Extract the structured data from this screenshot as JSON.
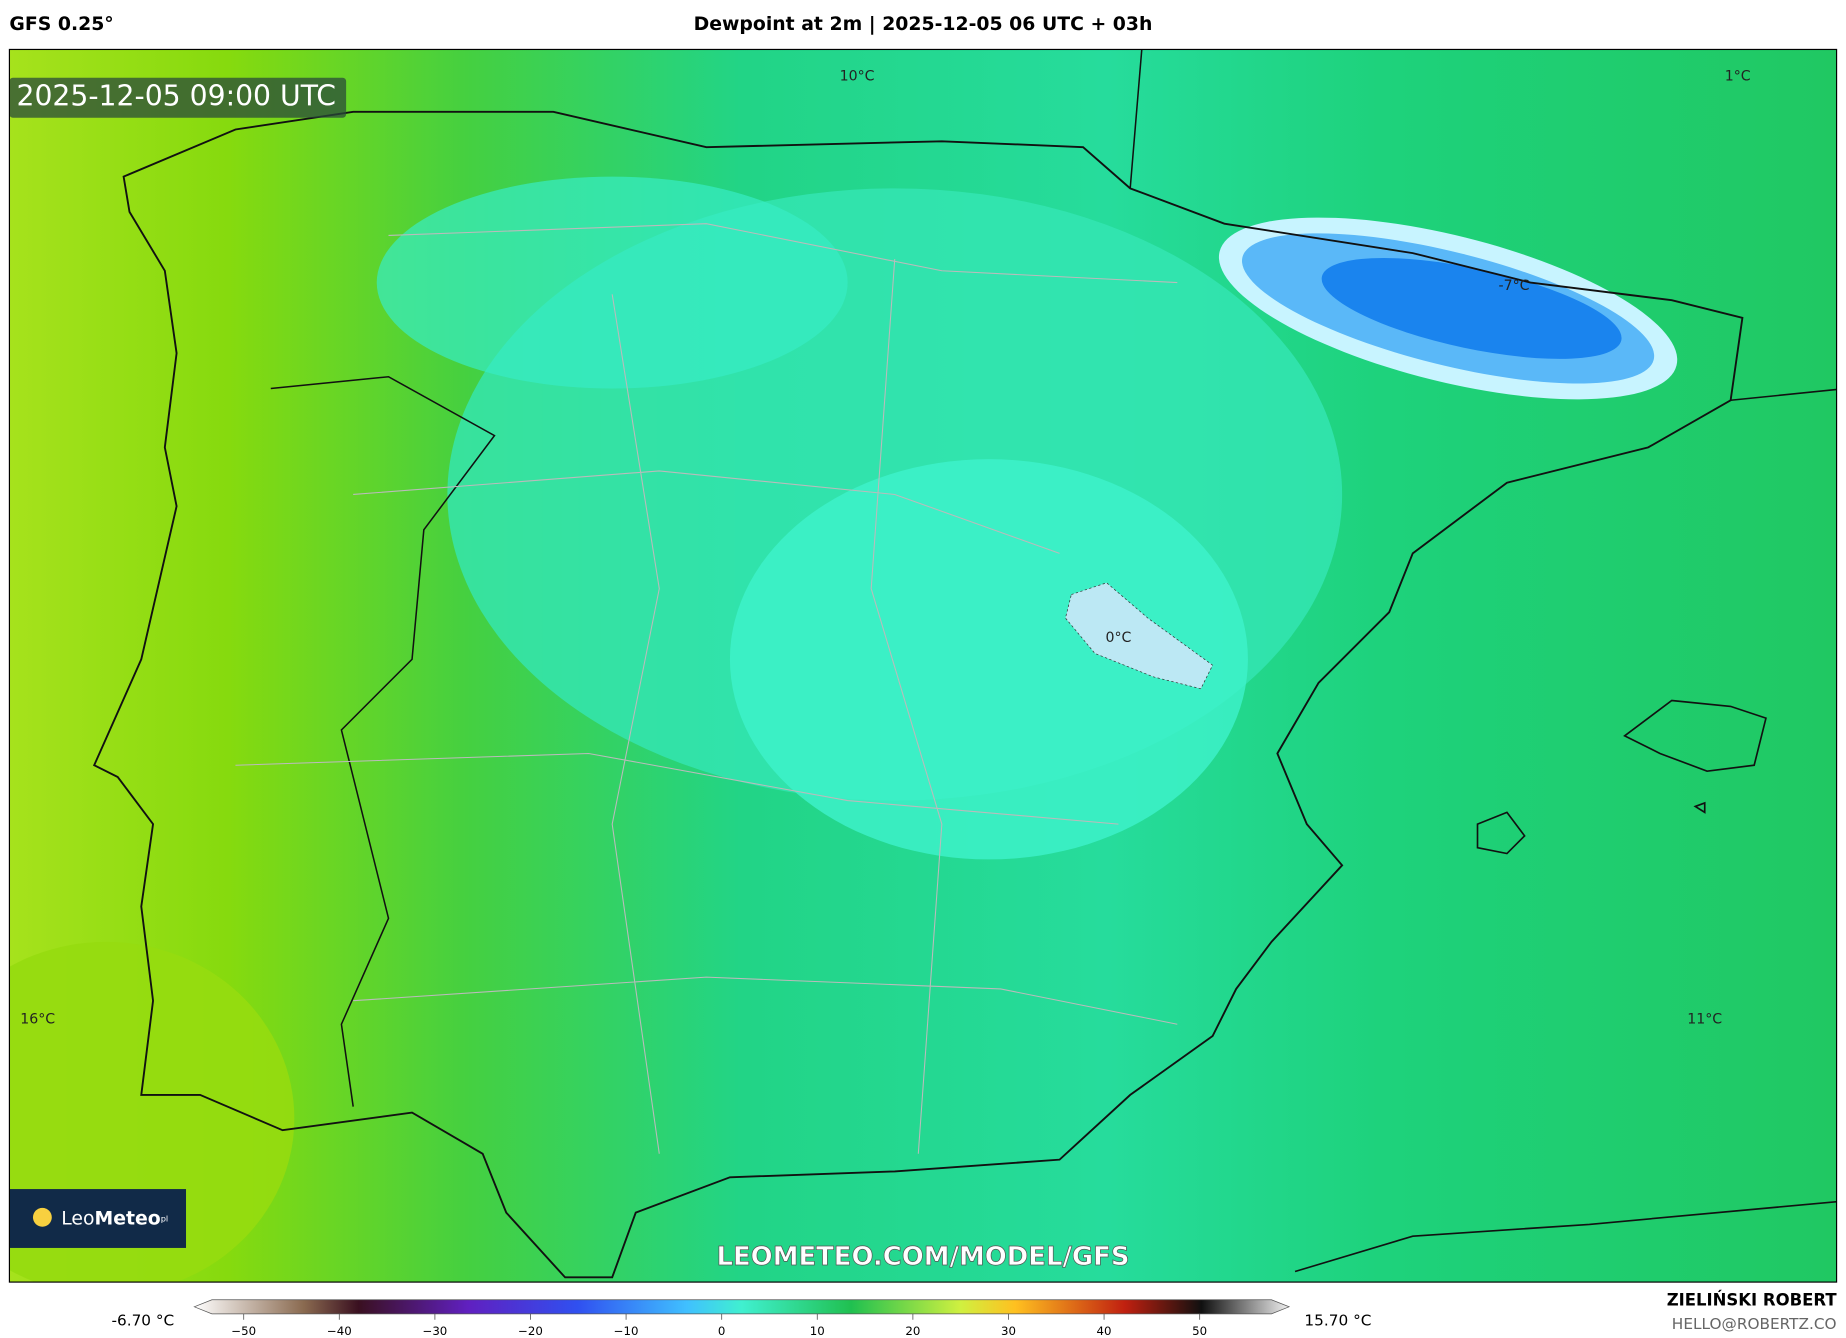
{
  "header": {
    "model": "GFS 0.25°",
    "title": "Dewpoint at 2m | 2025-12-05 06 UTC + 03h"
  },
  "map": {
    "timestamp": "2025-12-05 09:00 UTC",
    "labels": [
      "10°C",
      "1°C",
      "-7°C",
      "0°C",
      "16°C",
      "11°C"
    ],
    "watermark": "LEOMETEO.COM/MODEL/GFS"
  },
  "logo": {
    "part1": "Leo",
    "part2": "Meteo",
    "suffix": "pl"
  },
  "colorbar": {
    "min": "-6.70 °C",
    "max": "15.70 °C",
    "ticks": [
      "−50",
      "−40",
      "−30",
      "−20",
      "−10",
      "0",
      "10",
      "20",
      "30",
      "40",
      "50"
    ]
  },
  "credit": {
    "name": "ZIELIŃSKI ROBERT",
    "email": "HELLO@ROBERTZ.CO"
  }
}
